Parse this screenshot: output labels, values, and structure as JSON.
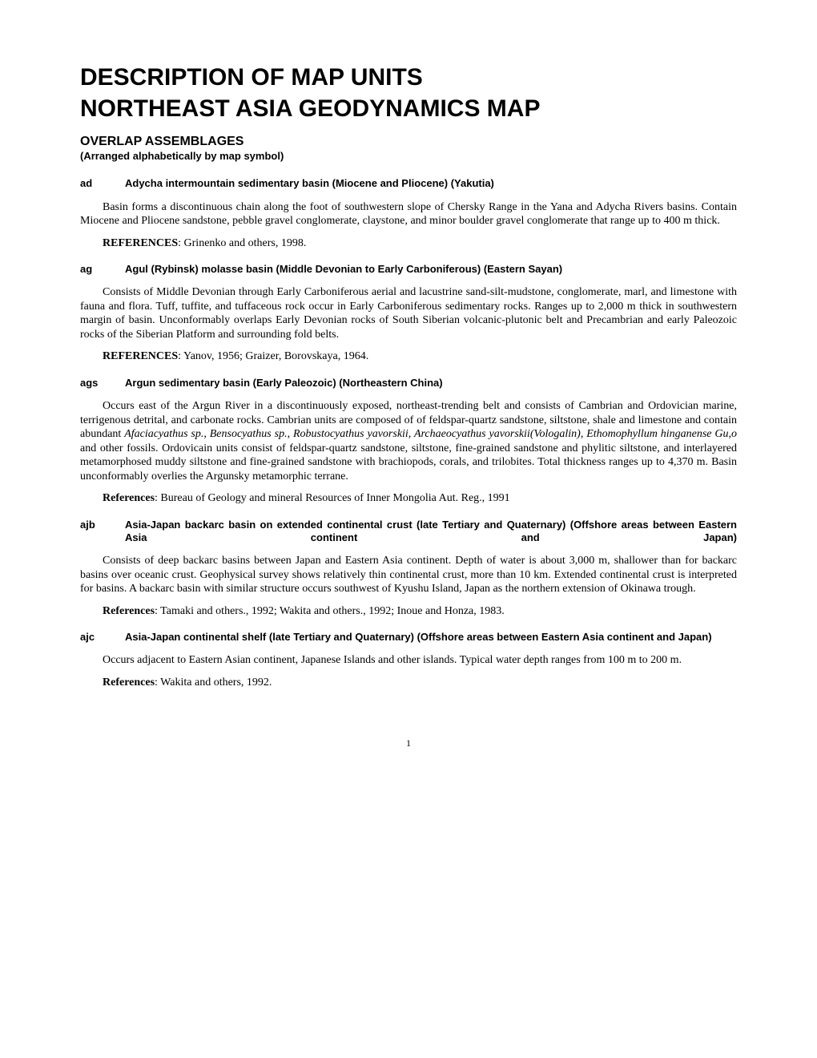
{
  "title_line1": "DESCRIPTION OF MAP UNITS",
  "title_line2": "NORTHEAST ASIA GEODYNAMICS MAP",
  "section_heading": "OVERLAP ASSEMBLAGES",
  "section_note": "(Arranged alphabetically by map symbol)",
  "entries": [
    {
      "symbol": "ad",
      "title": "Adycha intermountain sedimentary basin (Miocene and Pliocene) (Yakutia)",
      "body": "Basin forms a discontinuous chain along the foot of southwestern slope of Chersky Range in the Yana and Adycha Rivers basins. Contain Miocene and Pliocene sandstone, pebble gravel conglomerate, claystone, and minor boulder gravel conglomerate that range up to 400 m thick.",
      "refs_label": "REFERENCES",
      "refs_text": ": Grinenko and others, 1998."
    },
    {
      "symbol": "ag",
      "title": "Agul (Rybinsk) molasse basin (Middle Devonian to Early Carboniferous) (Eastern Sayan)",
      "body": "Consists of Middle Devonian through Early Carboniferous aerial and lacustrine sand-silt-mudstone, conglomerate, marl, and limestone with fauna and flora. Tuff, tuffite, and tuffaceous rock occur in Early Carboniferous sedimentary rocks. Ranges up to 2,000 m thick in southwestern margin of basin. Unconformably overlaps Early Devonian rocks of South Siberian volcanic-plutonic belt and Precambrian and early Paleozoic rocks of the Siberian Platform and surrounding fold belts.",
      "refs_label": "REFERENCES",
      "refs_text": ": Yanov, 1956; Graizer, Borovskaya, 1964."
    },
    {
      "symbol": "ags",
      "title": "Argun sedimentary basin (Early Paleozoic) (Northeastern China)",
      "body_pre_italic": "Occurs east of the Argun River in a discontinuously exposed, northeast-trending belt and consists of Cambrian and Ordovician marine, terrigenous detrital, and carbonate rocks. Cambrian units are composed of of feldspar-quartz sandstone, siltstone, shale and limestone and contain abundant ",
      "body_italic": "Afaciacyathus sp., Bensocyathus sp., Robustocyathus yavorskii, Archaeocyathus yavorskii(Vologalin), Ethomophyllum hinganense Gu,o",
      "body_post_italic": " and other fossils. Ordovicain units consist of feldspar-quartz sandstone, siltstone, fine-grained sandstone and phylitic siltstone, and interlayered metamorphosed muddy siltstone and fine-grained sandstone with brachiopods, corals, and trilobites. Total thickness ranges up to 4,370 m. Basin unconformably overlies the Argunsky metamorphic terrane.",
      "refs_label": "References",
      "refs_text": ": Bureau of Geology and mineral Resources of Inner Mongolia Aut. Reg., 1991"
    },
    {
      "symbol": "ajb",
      "title": "Asia-Japan backarc basin on extended continental crust (late Tertiary and Quaternary) (Offshore areas between Eastern Asia continent and Japan)",
      "body": "Consists of deep backarc basins between Japan and Eastern Asia continent. Depth of water is about 3,000 m, shallower than for backarc basins over oceanic crust. Geophysical survey shows relatively thin continental crust, more than 10 km. Extended continental crust is interpreted for basins. A backarc basin with similar structure occurs southwest of Kyushu Island, Japan as the northern extension of Okinawa trough.",
      "refs_label": "References",
      "refs_text": ": Tamaki and others., 1992; Wakita and others., 1992; Inoue and Honza, 1983."
    },
    {
      "symbol": "ajc",
      "title": "Asia-Japan continental shelf (late Tertiary and Quaternary) (Offshore areas between Eastern Asia continent and Japan)",
      "body": "Occurs adjacent to Eastern Asian continent, Japanese Islands and other islands. Typical water depth ranges from 100 m to 200 m.",
      "refs_label": "References",
      "refs_text": ": Wakita and others, 1992."
    }
  ],
  "page_number": "1"
}
